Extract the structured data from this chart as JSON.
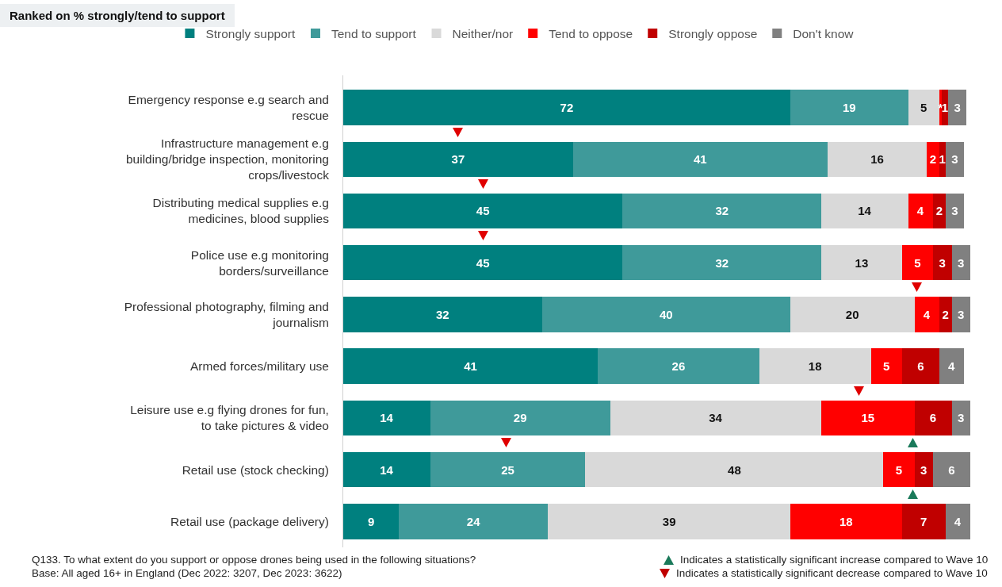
{
  "chart_data": {
    "type": "bar",
    "orientation": "horizontal",
    "stacked": true,
    "title": "Ranked on % strongly/tend to support",
    "categories": [
      "Emergency response e.g search and rescue",
      "Infrastructure management e.g building/bridge inspection, monitoring crops/livestock",
      "Distributing medical supplies e.g medicines, blood supplies",
      "Police use e.g monitoring borders/surveillance",
      "Professional photography, filming and journalism",
      "Armed forces/military use",
      "Leisure use e.g flying drones for fun, to take pictures & video",
      "Retail use (stock checking)",
      "Retail use (package delivery)"
    ],
    "xlim": [
      0,
      101
    ],
    "tick_labels": "y",
    "legend": "top",
    "data_labels": true,
    "series": [
      {
        "name": "Strongly support",
        "color": "#00807f",
        "values": [
          72,
          37,
          45,
          45,
          32,
          41,
          14,
          14,
          9
        ]
      },
      {
        "name": "Tend to support",
        "color": "#3f9a9a",
        "values": [
          19,
          41,
          32,
          32,
          40,
          26,
          29,
          25,
          24
        ]
      },
      {
        "name": "Neither/nor",
        "color": "#d9d9d9",
        "values": [
          5,
          16,
          14,
          13,
          20,
          18,
          34,
          48,
          39
        ]
      },
      {
        "name": "Tend to oppose",
        "color": "#ff0000",
        "values": [
          0.4,
          2,
          4,
          5,
          4,
          5,
          15,
          5,
          18
        ],
        "value_labels": [
          "*",
          "2",
          "4",
          "5",
          "4",
          "5",
          "15",
          "5",
          "18"
        ]
      },
      {
        "name": "Strongly oppose",
        "color": "#c00000",
        "values": [
          1,
          1,
          2,
          3,
          2,
          6,
          6,
          3,
          7
        ]
      },
      {
        "name": "Don't know",
        "color": "#808080",
        "values": [
          3,
          3,
          3,
          3,
          3,
          4,
          3,
          6,
          4
        ]
      }
    ],
    "annotations": [
      "Q133. To what extent do you support or oppose drones being used in the following situations?",
      "Base: All aged 16+ in England (Dec 2022: 3207, Dec 2023: 3622)",
      "Indicates a statistically significant increase compared to Wave 10",
      "Indicates a statistically significant decrease compared to Wave 10"
    ]
  }
}
